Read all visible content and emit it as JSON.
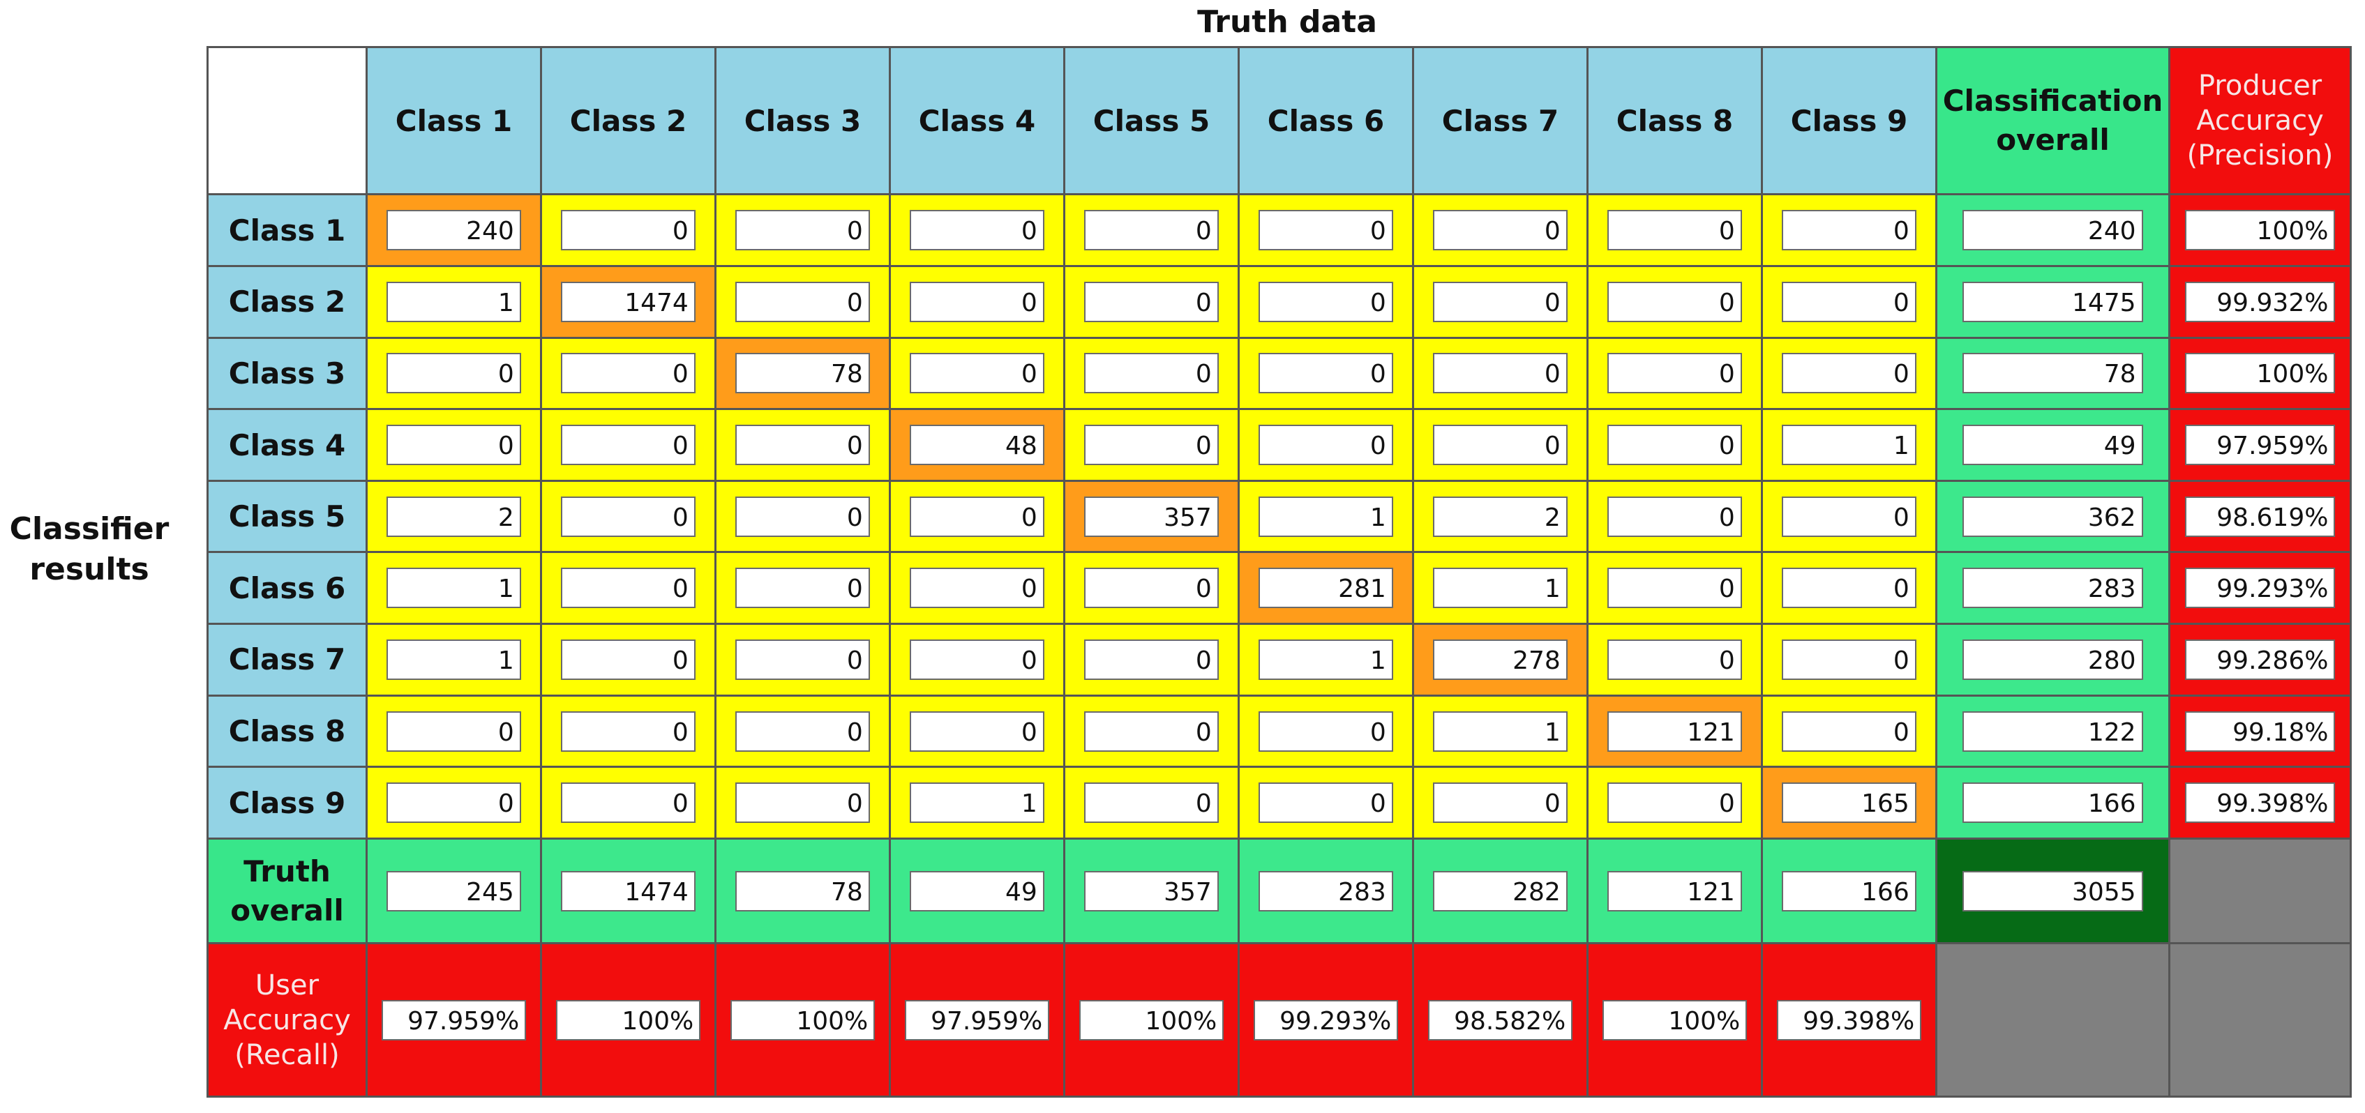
{
  "titles": {
    "truth": "Truth data",
    "classifier": "Classifier results"
  },
  "headers": {
    "columns": [
      "Class 1",
      "Class 2",
      "Class 3",
      "Class 4",
      "Class 5",
      "Class 6",
      "Class 7",
      "Class 8",
      "Class 9"
    ],
    "classification_overall": "Classification overall",
    "producer_accuracy": "Producer Accuracy (Precision)",
    "truth_overall": "Truth overall",
    "user_accuracy": "User Accuracy (Recall)"
  },
  "rows": [
    {
      "label": "Class 1",
      "values": [
        "240",
        "0",
        "0",
        "0",
        "0",
        "0",
        "0",
        "0",
        "0"
      ],
      "overall": "240",
      "precision": "100%"
    },
    {
      "label": "Class 2",
      "values": [
        "1",
        "1474",
        "0",
        "0",
        "0",
        "0",
        "0",
        "0",
        "0"
      ],
      "overall": "1475",
      "precision": "99.932%"
    },
    {
      "label": "Class 3",
      "values": [
        "0",
        "0",
        "78",
        "0",
        "0",
        "0",
        "0",
        "0",
        "0"
      ],
      "overall": "78",
      "precision": "100%"
    },
    {
      "label": "Class 4",
      "values": [
        "0",
        "0",
        "0",
        "48",
        "0",
        "0",
        "0",
        "0",
        "1"
      ],
      "overall": "49",
      "precision": "97.959%"
    },
    {
      "label": "Class 5",
      "values": [
        "2",
        "0",
        "0",
        "0",
        "357",
        "1",
        "2",
        "0",
        "0"
      ],
      "overall": "362",
      "precision": "98.619%"
    },
    {
      "label": "Class 6",
      "values": [
        "1",
        "0",
        "0",
        "0",
        "0",
        "281",
        "1",
        "0",
        "0"
      ],
      "overall": "283",
      "precision": "99.293%"
    },
    {
      "label": "Class 7",
      "values": [
        "1",
        "0",
        "0",
        "0",
        "0",
        "1",
        "278",
        "0",
        "0"
      ],
      "overall": "280",
      "precision": "99.286%"
    },
    {
      "label": "Class 8",
      "values": [
        "0",
        "0",
        "0",
        "0",
        "0",
        "0",
        "1",
        "121",
        "0"
      ],
      "overall": "122",
      "precision": "99.18%"
    },
    {
      "label": "Class 9",
      "values": [
        "0",
        "0",
        "0",
        "1",
        "0",
        "0",
        "0",
        "0",
        "165"
      ],
      "overall": "166",
      "precision": "99.398%"
    }
  ],
  "truth_overall": [
    "245",
    "1474",
    "78",
    "49",
    "357",
    "283",
    "282",
    "121",
    "166"
  ],
  "grand_total": "3055",
  "user_accuracy": [
    "97.959%",
    "100%",
    "100%",
    "97.959%",
    "100%",
    "99.293%",
    "98.582%",
    "100%",
    "99.398%"
  ],
  "colors": {
    "header_blue": "#93d3e5",
    "cell_yellow": "#ffff00",
    "diagonal_orange": "#ff9c1a",
    "total_green": "#3de88c",
    "grand_total_dark_green": "#066b16",
    "accuracy_red": "#f20d0d",
    "empty_gray": "#808080"
  }
}
